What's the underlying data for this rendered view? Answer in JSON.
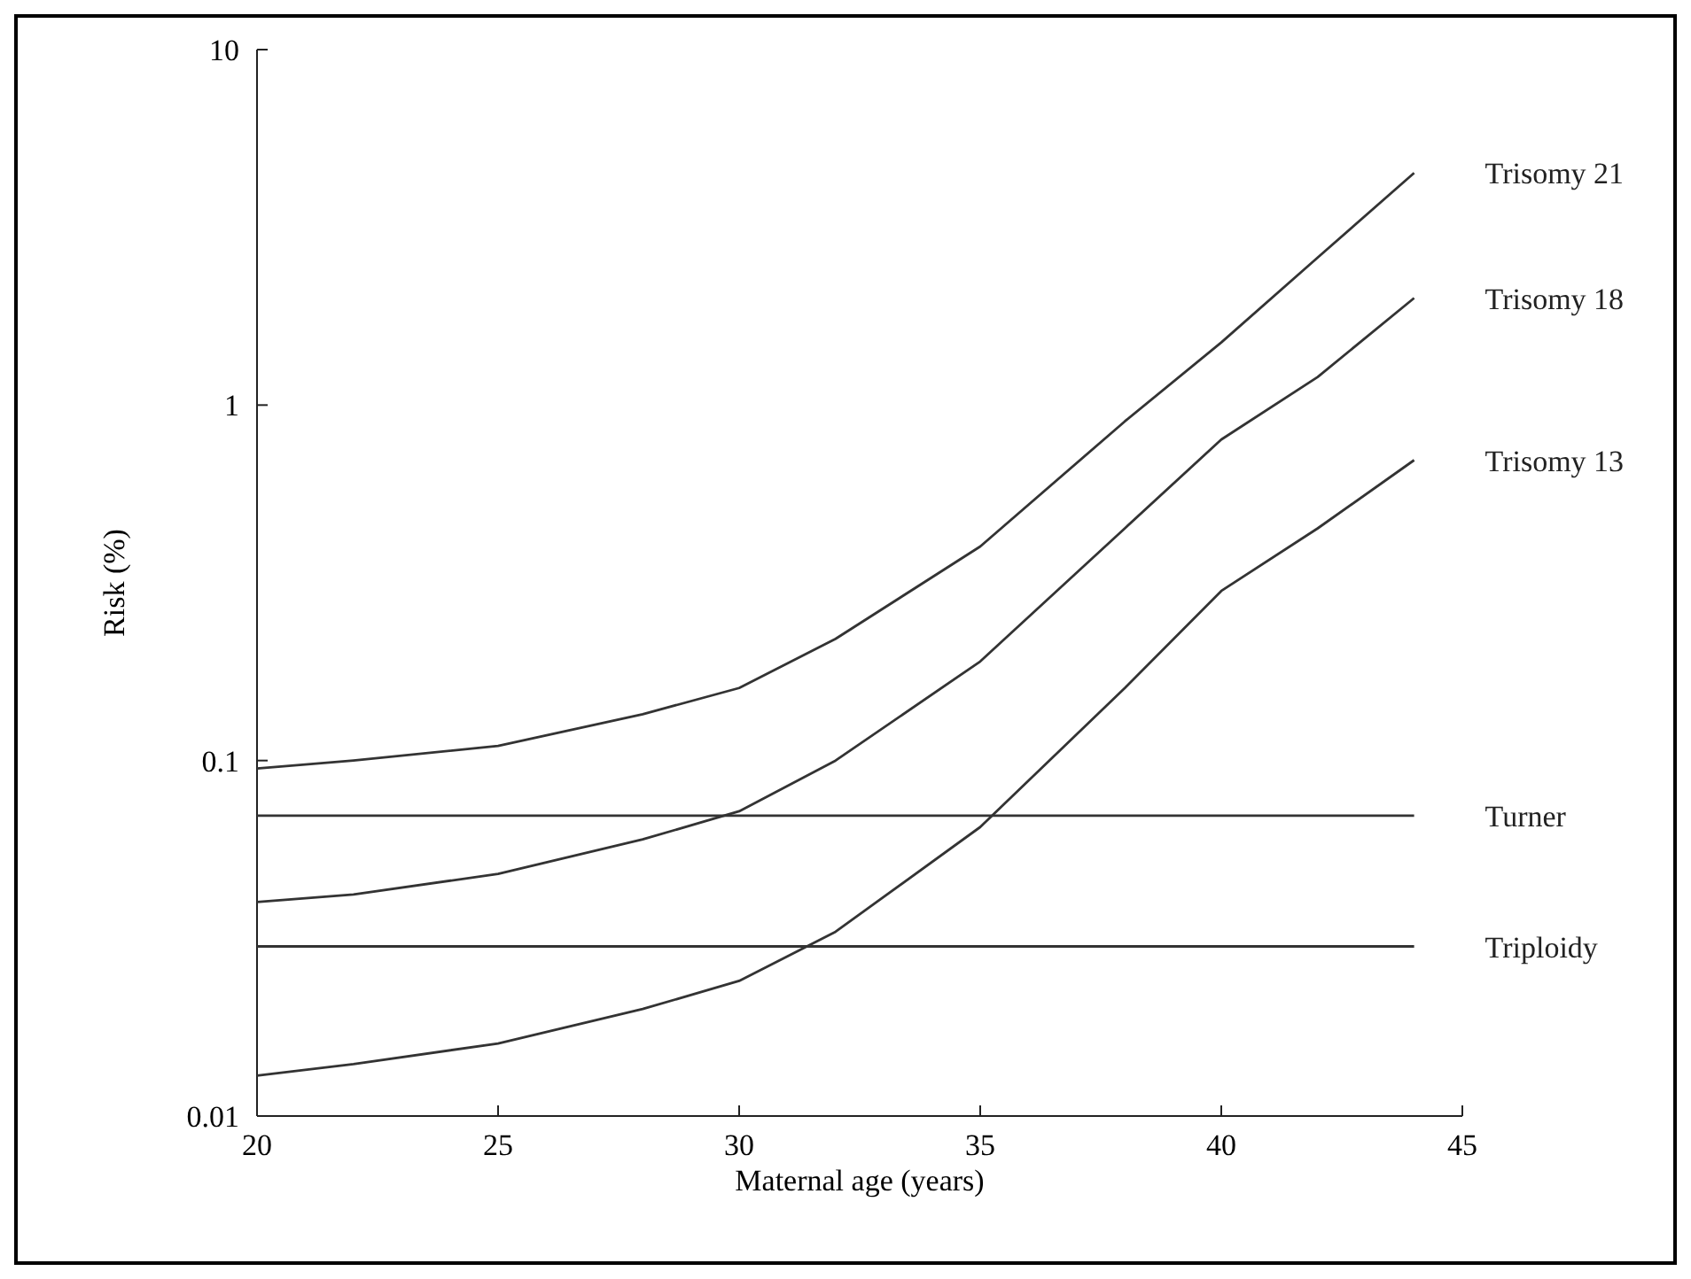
{
  "chart_data": {
    "type": "line",
    "xlabel": "Maternal age (years)",
    "ylabel": "Risk (%)",
    "xlim": [
      20,
      45
    ],
    "xticks": [
      20,
      25,
      30,
      35,
      40,
      45
    ],
    "ylim": [
      0.01,
      10
    ],
    "yticks": [
      0.01,
      0.1,
      1,
      10
    ],
    "log": "y",
    "grid": false,
    "legend": false,
    "marker": "none",
    "line_style": "solid",
    "series": [
      {
        "name": "Trisomy 21",
        "color": "#333333",
        "x": [
          20,
          22,
          25,
          28,
          30,
          32,
          35,
          38,
          40,
          42,
          44
        ],
        "values": [
          0.095,
          0.1,
          0.11,
          0.135,
          0.16,
          0.22,
          0.4,
          0.9,
          1.5,
          2.6,
          4.5
        ]
      },
      {
        "name": "Trisomy 18",
        "color": "#333333",
        "x": [
          20,
          22,
          25,
          28,
          30,
          32,
          35,
          38,
          40,
          42,
          44
        ],
        "values": [
          0.04,
          0.042,
          0.048,
          0.06,
          0.072,
          0.1,
          0.19,
          0.45,
          0.8,
          1.2,
          2
        ]
      },
      {
        "name": "Trisomy 13",
        "color": "#333333",
        "x": [
          20,
          22,
          25,
          28,
          30,
          32,
          35,
          38,
          40,
          42,
          44
        ],
        "values": [
          0.013,
          0.014,
          0.016,
          0.02,
          0.024,
          0.033,
          0.065,
          0.16,
          0.3,
          0.45,
          0.7
        ]
      },
      {
        "name": "Turner",
        "color": "#333333",
        "x": [
          20,
          44
        ],
        "values": [
          0.07,
          0.07
        ]
      },
      {
        "name": "Triploidy",
        "color": "#333333",
        "x": [
          20,
          44
        ],
        "values": [
          0.03,
          0.03
        ]
      }
    ]
  }
}
